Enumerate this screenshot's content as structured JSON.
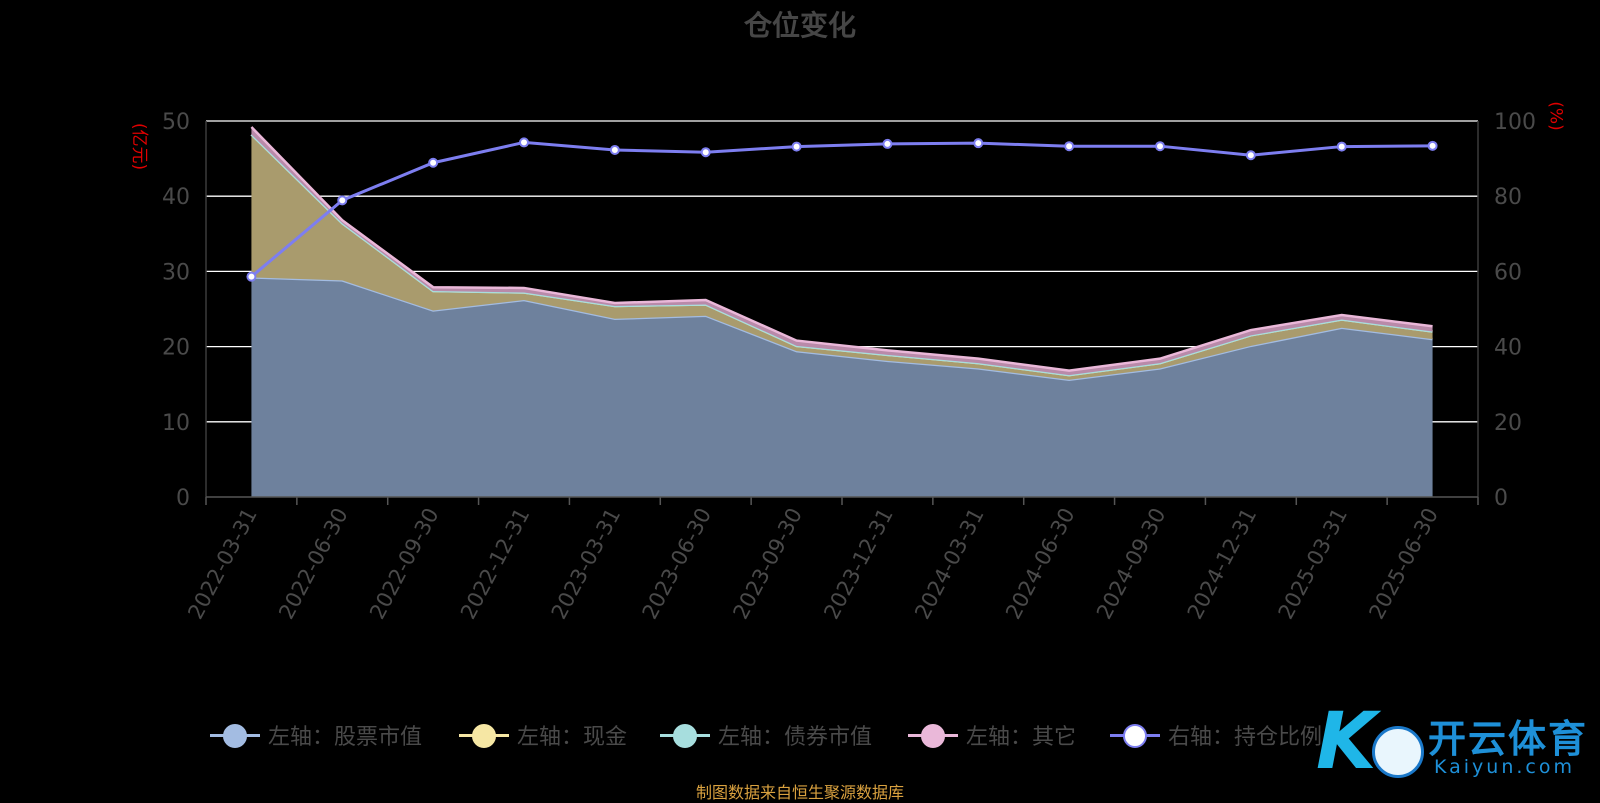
{
  "title": "仓位变化",
  "left_axis_unit": "(亿元)",
  "right_axis_unit": "(%)",
  "source_note": "制图数据来自恒生聚源数据库",
  "watermark": {
    "brand_cn": "开云体育",
    "brand_en": "Kaiyun.com"
  },
  "colors": {
    "background": "#000000",
    "stock": "#a3bce2",
    "cash": "#f6e7a4",
    "bond": "#a7dede",
    "other": "#eab8d9",
    "ratio": "#7d7ef0",
    "grid": "#ffffff",
    "axis_text": "#4a4a4a",
    "unit_text": "#e00000"
  },
  "chart_data": {
    "type": "area",
    "title": "仓位变化",
    "x": [
      "2022-03-31",
      "2022-06-30",
      "2022-09-30",
      "2022-12-31",
      "2023-03-31",
      "2023-06-30",
      "2023-09-30",
      "2023-12-31",
      "2024-03-31",
      "2024-06-30",
      "2024-09-30",
      "2024-12-31",
      "2025-03-31",
      "2025-06-30"
    ],
    "left_axis": {
      "label": "(亿元)",
      "min": 0,
      "max": 50,
      "ticks": [
        0,
        10,
        20,
        30,
        40,
        50
      ]
    },
    "right_axis": {
      "label": "(%)",
      "min": 0,
      "max": 100,
      "ticks": [
        0,
        20,
        40,
        60,
        80,
        100
      ]
    },
    "stacked": true,
    "grid": true,
    "legend_position": "bottom",
    "series": [
      {
        "name": "左轴：股票市值",
        "axis": "left",
        "type": "area",
        "color": "#a3bce2",
        "values": [
          29.2,
          28.8,
          24.8,
          26.2,
          23.7,
          24.1,
          19.4,
          18.1,
          17.1,
          15.6,
          17.1,
          20.1,
          22.5,
          21.0
        ]
      },
      {
        "name": "左轴：现金",
        "axis": "left",
        "type": "area",
        "color": "#f6e7a4",
        "values": [
          19.0,
          7.6,
          2.6,
          1.0,
          1.7,
          1.5,
          0.7,
          0.8,
          0.7,
          0.6,
          0.7,
          1.4,
          1.1,
          1.0
        ]
      },
      {
        "name": "左轴：债券市值",
        "axis": "left",
        "type": "area",
        "color": "#a7dede",
        "values": [
          0,
          0,
          0,
          0,
          0,
          0,
          0,
          0,
          0,
          0,
          0,
          0,
          0,
          0
        ]
      },
      {
        "name": "左轴：其它",
        "axis": "left",
        "type": "area",
        "color": "#eab8d9",
        "values": [
          1.0,
          0.4,
          0.5,
          0.6,
          0.4,
          0.6,
          0.7,
          0.6,
          0.6,
          0.6,
          0.6,
          0.7,
          0.6,
          0.7
        ]
      },
      {
        "name": "右轴：持仓比例",
        "axis": "right",
        "type": "line",
        "color": "#7d7ef0",
        "values": [
          58.6,
          78.9,
          88.9,
          94.3,
          92.3,
          91.7,
          93.2,
          93.9,
          94.1,
          93.3,
          93.3,
          90.9,
          93.2,
          93.4
        ]
      }
    ]
  },
  "legend": [
    {
      "label": "左轴：股票市值",
      "color": "#a3bce2"
    },
    {
      "label": "左轴：现金",
      "color": "#f6e7a4"
    },
    {
      "label": "左轴：债券市值",
      "color": "#a7dede"
    },
    {
      "label": "左轴：其它",
      "color": "#eab8d9"
    },
    {
      "label": "右轴：持仓比例",
      "color": "#7d7ef0"
    }
  ]
}
